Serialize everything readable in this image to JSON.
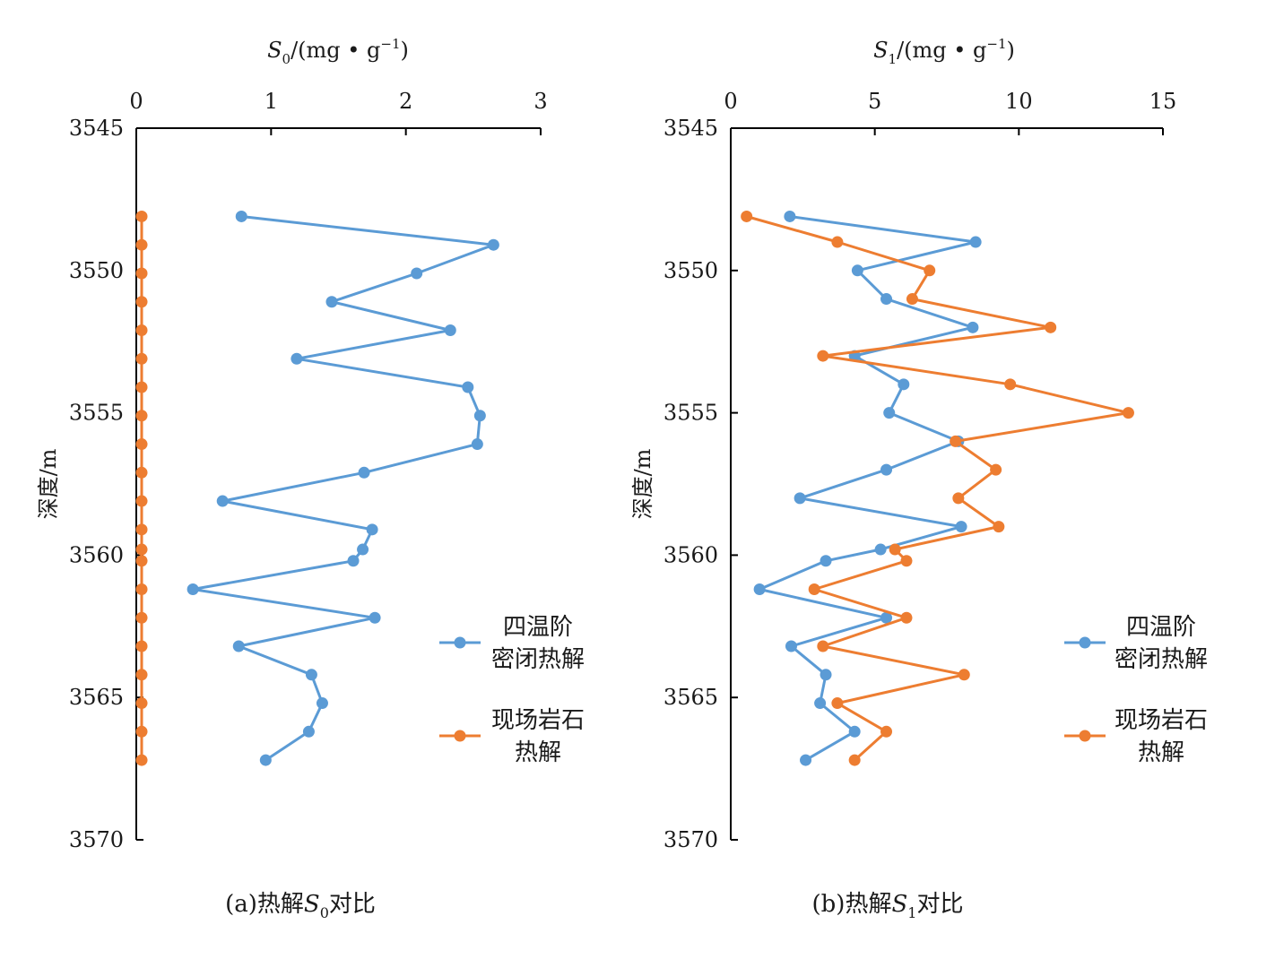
{
  "colors": {
    "series1": "#5B9BD5",
    "series2": "#ED7D31",
    "axis": "#000000"
  },
  "chart_data": [
    {
      "type": "line",
      "orientation": "depth-vertical",
      "title": "",
      "caption": {
        "prefix": "(a)热解",
        "var": "S",
        "sub": "0",
        "suffix": "对比"
      },
      "xlabel": {
        "var": "S",
        "sub": "0",
        "unit": "/(mg • g",
        "sup": "−1",
        "close": ")"
      },
      "ylabel": "深度/m",
      "xlim": [
        0,
        3
      ],
      "ylim": [
        3545,
        3570
      ],
      "x_ticks": [
        "0",
        "1",
        "2",
        "3"
      ],
      "y_ticks": [
        "3545",
        "3550",
        "3555",
        "3560",
        "3565",
        "3570"
      ],
      "legend_position": "right",
      "series": [
        {
          "name": "四温阶密闭热解",
          "legend_lines": [
            "四温阶",
            "密闭热解"
          ],
          "depth": [
            3548.1,
            3549.1,
            3550.1,
            3551.1,
            3552.1,
            3553.1,
            3554.1,
            3555.1,
            3556.1,
            3557.1,
            3558.1,
            3559.1,
            3559.8,
            3560.2,
            3561.2,
            3562.2,
            3563.2,
            3564.2,
            3565.2,
            3566.2,
            3567.2
          ],
          "values": [
            0.78,
            2.65,
            2.08,
            1.45,
            2.33,
            1.19,
            2.46,
            2.55,
            2.53,
            1.69,
            0.64,
            1.75,
            1.68,
            1.61,
            0.42,
            1.77,
            0.76,
            1.3,
            1.38,
            1.28,
            0.96
          ]
        },
        {
          "name": "现场岩石热解",
          "legend_lines": [
            "现场岩石",
            "热解"
          ],
          "depth": [
            3548.1,
            3549.1,
            3550.1,
            3551.1,
            3552.1,
            3553.1,
            3554.1,
            3555.1,
            3556.1,
            3557.1,
            3558.1,
            3559.1,
            3559.8,
            3560.2,
            3561.2,
            3562.2,
            3563.2,
            3564.2,
            3565.2,
            3566.2,
            3567.2
          ],
          "values": [
            0.04,
            0.04,
            0.04,
            0.04,
            0.04,
            0.04,
            0.04,
            0.04,
            0.04,
            0.04,
            0.04,
            0.04,
            0.04,
            0.04,
            0.04,
            0.04,
            0.04,
            0.04,
            0.04,
            0.04,
            0.04
          ]
        }
      ]
    },
    {
      "type": "line",
      "orientation": "depth-vertical",
      "title": "",
      "caption": {
        "prefix": "(b)热解",
        "var": "S",
        "sub": "1",
        "suffix": "对比"
      },
      "xlabel": {
        "var": "S",
        "sub": "1",
        "unit": "/(mg • g",
        "sup": "−1",
        "close": ")"
      },
      "ylabel": "深度/m",
      "xlim": [
        0,
        15
      ],
      "ylim": [
        3545,
        3570
      ],
      "x_ticks": [
        "0",
        "5",
        "10",
        "15"
      ],
      "y_ticks": [
        "3545",
        "3550",
        "3555",
        "3560",
        "3565",
        "3570"
      ],
      "legend_position": "right",
      "series": [
        {
          "name": "四温阶密闭热解",
          "legend_lines": [
            "四温阶",
            "密闭热解"
          ],
          "depth": [
            3548.1,
            3549.0,
            3550.0,
            3551.0,
            3552.0,
            3553.0,
            3554.0,
            3555.0,
            3556.0,
            3557.0,
            3558.0,
            3559.0,
            3559.8,
            3560.2,
            3561.2,
            3562.2,
            3563.2,
            3564.2,
            3565.2,
            3566.2,
            3567.2
          ],
          "values": [
            2.05,
            8.5,
            4.4,
            5.4,
            8.4,
            4.3,
            6.0,
            5.5,
            7.9,
            5.4,
            2.4,
            8.0,
            5.2,
            3.3,
            1.0,
            5.4,
            2.1,
            3.3,
            3.1,
            4.3,
            2.6
          ]
        },
        {
          "name": "现场岩石热解",
          "legend_lines": [
            "现场岩石",
            "热解"
          ],
          "depth": [
            3548.1,
            3549.0,
            3550.0,
            3551.0,
            3552.0,
            3553.0,
            3554.0,
            3555.0,
            3556.0,
            3557.0,
            3558.0,
            3559.0,
            3559.8,
            3560.2,
            3561.2,
            3562.2,
            3563.2,
            3564.2,
            3565.2,
            3566.2,
            3567.2
          ],
          "values": [
            0.55,
            3.7,
            6.9,
            6.3,
            11.1,
            3.2,
            9.7,
            13.8,
            7.8,
            9.2,
            7.9,
            9.3,
            5.7,
            6.1,
            2.9,
            6.1,
            3.2,
            8.1,
            3.7,
            5.4,
            4.3
          ]
        }
      ]
    }
  ]
}
